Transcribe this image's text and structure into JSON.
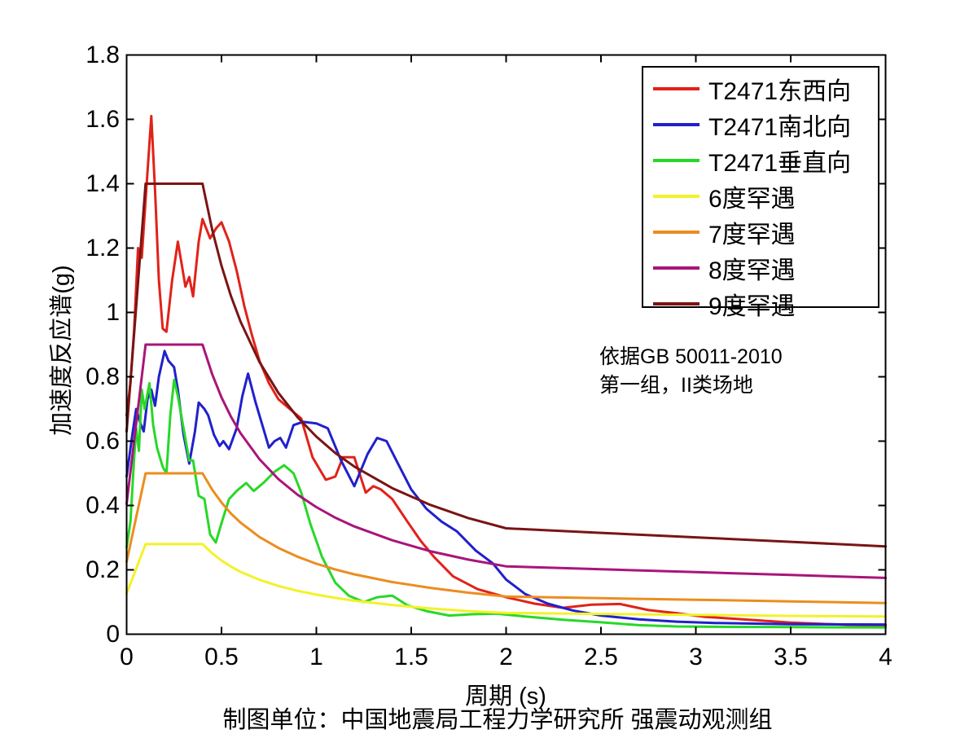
{
  "figure": {
    "background": "#ffffff",
    "axis_color": "#000000",
    "caption": "制图单位：中国地震局工程力学研究所 强震动观测组"
  },
  "chart_data": {
    "type": "line",
    "title": "",
    "xlabel": "周期 (s)",
    "ylabel": "加速度反应谱(g)",
    "xlim": [
      0,
      4
    ],
    "ylim": [
      0,
      1.8
    ],
    "xticks": [
      0,
      0.5,
      1,
      1.5,
      2,
      2.5,
      3,
      3.5,
      4
    ],
    "xtick_labels": [
      "0",
      "0.5",
      "1",
      "1.5",
      "2",
      "2.5",
      "3",
      "3.5",
      "4"
    ],
    "yticks": [
      0,
      0.2,
      0.4,
      0.6,
      0.8,
      1,
      1.2,
      1.4,
      1.6,
      1.8
    ],
    "ytick_labels": [
      "0",
      "0.2",
      "0.4",
      "0.6",
      "0.8",
      "1",
      "1.2",
      "1.4",
      "1.6",
      "1.8"
    ],
    "grid": false,
    "legend_position": "top-right",
    "annotations": [
      {
        "text": "依据GB 50011-2010"
      },
      {
        "text": "第一组，II类场地"
      }
    ],
    "series": [
      {
        "name": "T2471东西向",
        "color": "#e12219",
        "points": [
          [
            0,
            0.68
          ],
          [
            0.02,
            0.78
          ],
          [
            0.04,
            0.95
          ],
          [
            0.06,
            1.2
          ],
          [
            0.08,
            1.17
          ],
          [
            0.1,
            1.35
          ],
          [
            0.13,
            1.61
          ],
          [
            0.15,
            1.38
          ],
          [
            0.17,
            1.1
          ],
          [
            0.19,
            0.95
          ],
          [
            0.21,
            0.94
          ],
          [
            0.24,
            1.1
          ],
          [
            0.27,
            1.22
          ],
          [
            0.29,
            1.15
          ],
          [
            0.31,
            1.08
          ],
          [
            0.33,
            1.11
          ],
          [
            0.35,
            1.05
          ],
          [
            0.38,
            1.22
          ],
          [
            0.4,
            1.29
          ],
          [
            0.44,
            1.23
          ],
          [
            0.47,
            1.26
          ],
          [
            0.5,
            1.28
          ],
          [
            0.54,
            1.22
          ],
          [
            0.58,
            1.13
          ],
          [
            0.62,
            1.02
          ],
          [
            0.66,
            0.93
          ],
          [
            0.7,
            0.85
          ],
          [
            0.75,
            0.78
          ],
          [
            0.8,
            0.73
          ],
          [
            0.86,
            0.7
          ],
          [
            0.92,
            0.67
          ],
          [
            0.98,
            0.55
          ],
          [
            1.05,
            0.48
          ],
          [
            1.1,
            0.49
          ],
          [
            1.14,
            0.55
          ],
          [
            1.2,
            0.55
          ],
          [
            1.26,
            0.44
          ],
          [
            1.3,
            0.46
          ],
          [
            1.34,
            0.45
          ],
          [
            1.4,
            0.42
          ],
          [
            1.48,
            0.35
          ],
          [
            1.55,
            0.29
          ],
          [
            1.62,
            0.24
          ],
          [
            1.72,
            0.18
          ],
          [
            1.85,
            0.14
          ],
          [
            2.0,
            0.115
          ],
          [
            2.15,
            0.095
          ],
          [
            2.3,
            0.082
          ],
          [
            2.45,
            0.092
          ],
          [
            2.6,
            0.094
          ],
          [
            2.75,
            0.075
          ],
          [
            2.9,
            0.065
          ],
          [
            3.05,
            0.054
          ],
          [
            3.2,
            0.048
          ],
          [
            3.5,
            0.036
          ],
          [
            3.8,
            0.029
          ],
          [
            4.0,
            0.026
          ]
        ]
      },
      {
        "name": "T2471南北向",
        "color": "#2020cc",
        "points": [
          [
            0,
            0.49
          ],
          [
            0.03,
            0.62
          ],
          [
            0.05,
            0.7
          ],
          [
            0.07,
            0.66
          ],
          [
            0.09,
            0.63
          ],
          [
            0.11,
            0.73
          ],
          [
            0.13,
            0.76
          ],
          [
            0.15,
            0.71
          ],
          [
            0.17,
            0.8
          ],
          [
            0.2,
            0.88
          ],
          [
            0.22,
            0.85
          ],
          [
            0.25,
            0.83
          ],
          [
            0.27,
            0.76
          ],
          [
            0.3,
            0.62
          ],
          [
            0.33,
            0.53
          ],
          [
            0.36,
            0.63
          ],
          [
            0.38,
            0.72
          ],
          [
            0.41,
            0.7
          ],
          [
            0.43,
            0.68
          ],
          [
            0.46,
            0.62
          ],
          [
            0.49,
            0.585
          ],
          [
            0.51,
            0.6
          ],
          [
            0.54,
            0.575
          ],
          [
            0.58,
            0.64
          ],
          [
            0.61,
            0.74
          ],
          [
            0.64,
            0.81
          ],
          [
            0.68,
            0.72
          ],
          [
            0.72,
            0.64
          ],
          [
            0.75,
            0.58
          ],
          [
            0.78,
            0.6
          ],
          [
            0.81,
            0.61
          ],
          [
            0.84,
            0.58
          ],
          [
            0.88,
            0.65
          ],
          [
            0.93,
            0.66
          ],
          [
            1.0,
            0.655
          ],
          [
            1.06,
            0.64
          ],
          [
            1.13,
            0.54
          ],
          [
            1.2,
            0.46
          ],
          [
            1.27,
            0.56
          ],
          [
            1.32,
            0.61
          ],
          [
            1.37,
            0.6
          ],
          [
            1.43,
            0.53
          ],
          [
            1.5,
            0.45
          ],
          [
            1.58,
            0.39
          ],
          [
            1.66,
            0.35
          ],
          [
            1.74,
            0.32
          ],
          [
            1.84,
            0.26
          ],
          [
            1.93,
            0.22
          ],
          [
            2.0,
            0.17
          ],
          [
            2.1,
            0.125
          ],
          [
            2.22,
            0.095
          ],
          [
            2.35,
            0.074
          ],
          [
            2.5,
            0.058
          ],
          [
            2.7,
            0.046
          ],
          [
            2.9,
            0.039
          ],
          [
            3.1,
            0.035
          ],
          [
            3.5,
            0.031
          ],
          [
            4.0,
            0.03
          ]
        ]
      },
      {
        "name": "T2471垂直向",
        "color": "#28d828",
        "points": [
          [
            0,
            0.27
          ],
          [
            0.02,
            0.35
          ],
          [
            0.04,
            0.55
          ],
          [
            0.05,
            0.64
          ],
          [
            0.065,
            0.57
          ],
          [
            0.08,
            0.76
          ],
          [
            0.095,
            0.7
          ],
          [
            0.12,
            0.78
          ],
          [
            0.14,
            0.65
          ],
          [
            0.16,
            0.58
          ],
          [
            0.19,
            0.52
          ],
          [
            0.21,
            0.5
          ],
          [
            0.23,
            0.68
          ],
          [
            0.25,
            0.79
          ],
          [
            0.27,
            0.74
          ],
          [
            0.3,
            0.64
          ],
          [
            0.33,
            0.54
          ],
          [
            0.35,
            0.54
          ],
          [
            0.38,
            0.43
          ],
          [
            0.41,
            0.42
          ],
          [
            0.44,
            0.31
          ],
          [
            0.47,
            0.285
          ],
          [
            0.5,
            0.345
          ],
          [
            0.54,
            0.42
          ],
          [
            0.58,
            0.445
          ],
          [
            0.63,
            0.47
          ],
          [
            0.67,
            0.445
          ],
          [
            0.72,
            0.47
          ],
          [
            0.78,
            0.505
          ],
          [
            0.83,
            0.525
          ],
          [
            0.88,
            0.5
          ],
          [
            0.92,
            0.44
          ],
          [
            0.97,
            0.34
          ],
          [
            1.03,
            0.24
          ],
          [
            1.1,
            0.16
          ],
          [
            1.17,
            0.12
          ],
          [
            1.25,
            0.1
          ],
          [
            1.32,
            0.115
          ],
          [
            1.4,
            0.12
          ],
          [
            1.48,
            0.09
          ],
          [
            1.58,
            0.072
          ],
          [
            1.7,
            0.058
          ],
          [
            1.82,
            0.062
          ],
          [
            1.95,
            0.064
          ],
          [
            2.1,
            0.055
          ],
          [
            2.3,
            0.045
          ],
          [
            2.5,
            0.037
          ],
          [
            2.7,
            0.028
          ],
          [
            2.9,
            0.024
          ],
          [
            3.1,
            0.023
          ],
          [
            3.5,
            0.022
          ],
          [
            4.0,
            0.021
          ]
        ]
      },
      {
        "name": "6度罕遇",
        "color": "#f2f22a",
        "points": [
          [
            0,
            0.126
          ],
          [
            0.1,
            0.28
          ],
          [
            0.4,
            0.28
          ],
          [
            0.45,
            0.252
          ],
          [
            0.5,
            0.229
          ],
          [
            0.55,
            0.21
          ],
          [
            0.6,
            0.194
          ],
          [
            0.7,
            0.169
          ],
          [
            0.8,
            0.15
          ],
          [
            0.9,
            0.135
          ],
          [
            1.0,
            0.123
          ],
          [
            1.1,
            0.113
          ],
          [
            1.2,
            0.104
          ],
          [
            1.4,
            0.091
          ],
          [
            1.6,
            0.08
          ],
          [
            1.8,
            0.072
          ],
          [
            2.0,
            0.066
          ],
          [
            2.5,
            0.063
          ],
          [
            3.0,
            0.06
          ],
          [
            3.5,
            0.057
          ],
          [
            4.0,
            0.055
          ]
        ]
      },
      {
        "name": "7度罕遇",
        "color": "#ec8d1e",
        "points": [
          [
            0,
            0.225
          ],
          [
            0.1,
            0.5
          ],
          [
            0.4,
            0.5
          ],
          [
            0.45,
            0.45
          ],
          [
            0.5,
            0.409
          ],
          [
            0.55,
            0.375
          ],
          [
            0.6,
            0.347
          ],
          [
            0.7,
            0.302
          ],
          [
            0.8,
            0.268
          ],
          [
            0.9,
            0.241
          ],
          [
            1.0,
            0.219
          ],
          [
            1.1,
            0.201
          ],
          [
            1.2,
            0.186
          ],
          [
            1.4,
            0.162
          ],
          [
            1.6,
            0.144
          ],
          [
            1.8,
            0.129
          ],
          [
            2.0,
            0.117
          ],
          [
            2.5,
            0.112
          ],
          [
            3.0,
            0.107
          ],
          [
            3.5,
            0.102
          ],
          [
            4.0,
            0.097
          ]
        ]
      },
      {
        "name": "8度罕遇",
        "color": "#a8157a",
        "points": [
          [
            0,
            0.405
          ],
          [
            0.1,
            0.9
          ],
          [
            0.4,
            0.9
          ],
          [
            0.45,
            0.809
          ],
          [
            0.5,
            0.736
          ],
          [
            0.55,
            0.676
          ],
          [
            0.6,
            0.625
          ],
          [
            0.7,
            0.544
          ],
          [
            0.8,
            0.482
          ],
          [
            0.9,
            0.434
          ],
          [
            1.0,
            0.395
          ],
          [
            1.1,
            0.362
          ],
          [
            1.2,
            0.335
          ],
          [
            1.4,
            0.292
          ],
          [
            1.6,
            0.258
          ],
          [
            1.8,
            0.232
          ],
          [
            2.0,
            0.211
          ],
          [
            2.5,
            0.202
          ],
          [
            3.0,
            0.193
          ],
          [
            3.5,
            0.184
          ],
          [
            4.0,
            0.175
          ]
        ]
      },
      {
        "name": "9度罕遇",
        "color": "#7a1414",
        "points": [
          [
            0,
            0.63
          ],
          [
            0.1,
            1.4
          ],
          [
            0.4,
            1.4
          ],
          [
            0.45,
            1.259
          ],
          [
            0.5,
            1.145
          ],
          [
            0.55,
            1.051
          ],
          [
            0.6,
            0.972
          ],
          [
            0.7,
            0.846
          ],
          [
            0.8,
            0.75
          ],
          [
            0.9,
            0.675
          ],
          [
            1.0,
            0.614
          ],
          [
            1.1,
            0.563
          ],
          [
            1.2,
            0.521
          ],
          [
            1.4,
            0.454
          ],
          [
            1.6,
            0.402
          ],
          [
            1.8,
            0.361
          ],
          [
            2.0,
            0.329
          ],
          [
            2.5,
            0.315
          ],
          [
            3.0,
            0.301
          ],
          [
            3.5,
            0.287
          ],
          [
            4.0,
            0.273
          ]
        ]
      }
    ]
  }
}
